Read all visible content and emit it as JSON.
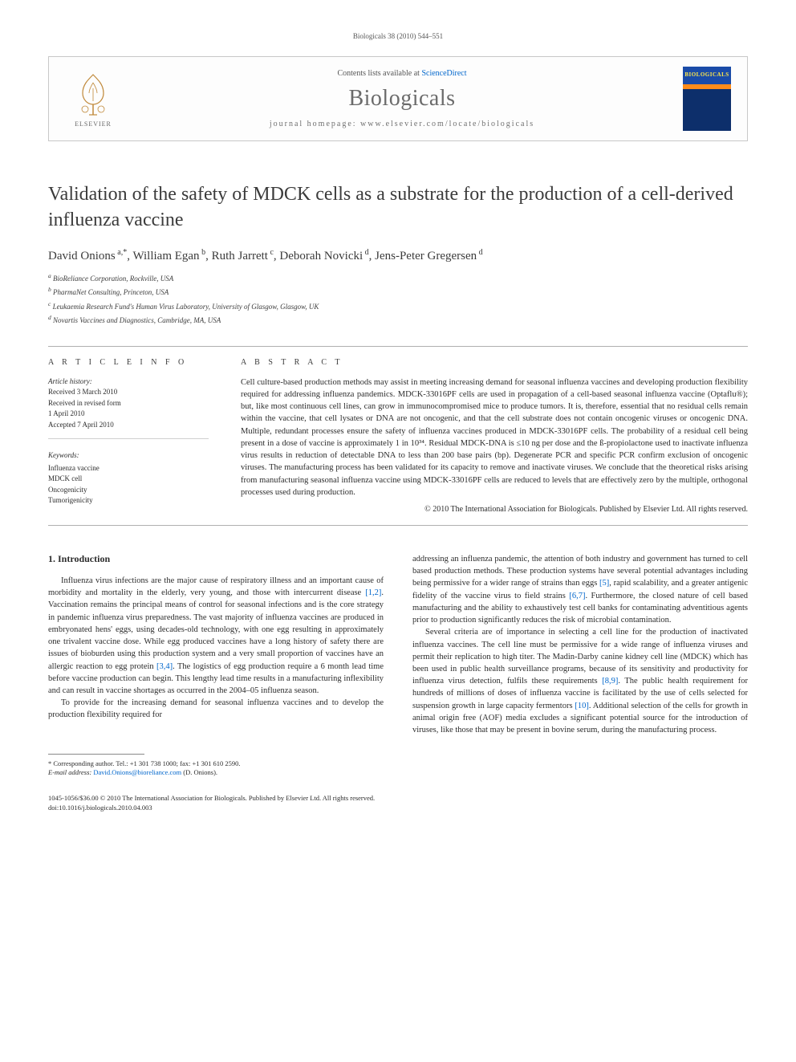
{
  "running_head": "Biologicals 38 (2010) 544–551",
  "masthead": {
    "contents_prefix": "Contents lists available at ",
    "contents_link": "ScienceDirect",
    "journal": "Biologicals",
    "homepage_label": "journal homepage: ",
    "homepage_url": "www.elsevier.com/locate/biologicals",
    "publisher_logo_text": "ELSEVIER",
    "cover_title": "BIOLOGICALS"
  },
  "title": "Validation of the safety of MDCK cells as a substrate for the production of a cell-derived influenza vaccine",
  "authors": [
    {
      "name": "David Onions",
      "marks": "a,*"
    },
    {
      "name": "William Egan",
      "marks": "b"
    },
    {
      "name": "Ruth Jarrett",
      "marks": "c"
    },
    {
      "name": "Deborah Novicki",
      "marks": "d"
    },
    {
      "name": "Jens-Peter Gregersen",
      "marks": "d"
    }
  ],
  "affiliations": [
    {
      "mark": "a",
      "text": "BioReliance Corporation, Rockville, USA"
    },
    {
      "mark": "b",
      "text": "PharmaNet Consulting, Princeton, USA"
    },
    {
      "mark": "c",
      "text": "Leukaemia Research Fund's Human Virus Laboratory, University of Glasgow, Glasgow, UK"
    },
    {
      "mark": "d",
      "text": "Novartis Vaccines and Diagnostics, Cambridge, MA, USA"
    }
  ],
  "article_info": {
    "label": "A R T I C L E   I N F O",
    "history_head": "Article history:",
    "history": [
      "Received 3 March 2010",
      "Received in revised form",
      "1 April 2010",
      "Accepted 7 April 2010"
    ],
    "keywords_head": "Keywords:",
    "keywords": [
      "Influenza vaccine",
      "MDCK cell",
      "Oncogenicity",
      "Tumorigenicity"
    ]
  },
  "abstract": {
    "label": "A B S T R A C T",
    "text": "Cell culture-based production methods may assist in meeting increasing demand for seasonal influenza vaccines and developing production flexibility required for addressing influenza pandemics. MDCK-33016PF cells are used in propagation of a cell-based seasonal influenza vaccine (Optaflu®); but, like most continuous cell lines, can grow in immunocompromised mice to produce tumors. It is, therefore, essential that no residual cells remain within the vaccine, that cell lysates or DNA are not oncogenic, and that the cell substrate does not contain oncogenic viruses or oncogenic DNA. Multiple, redundant processes ensure the safety of influenza vaccines produced in MDCK-33016PF cells. The probability of a residual cell being present in a dose of vaccine is approximately 1 in 10³⁴. Residual MDCK-DNA is ≤10 ng per dose and the ß-propiolactone used to inactivate influenza virus results in reduction of detectable DNA to less than 200 base pairs (bp). Degenerate PCR and specific PCR confirm exclusion of oncogenic viruses. The manufacturing process has been validated for its capacity to remove and inactivate viruses. We conclude that the theoretical risks arising from manufacturing seasonal influenza vaccine using MDCK-33016PF cells are reduced to levels that are effectively zero by the multiple, orthogonal processes used during production.",
    "copyright": "© 2010 The International Association for Biologicals. Published by Elsevier Ltd. All rights reserved."
  },
  "body": {
    "section_number": "1.",
    "section_title": "Introduction",
    "col1": [
      "Influenza virus infections are the major cause of respiratory illness and an important cause of morbidity and mortality in the elderly, very young, and those with intercurrent disease [1,2]. Vaccination remains the principal means of control for seasonal infections and is the core strategy in pandemic influenza virus preparedness. The vast majority of influenza vaccines are produced in embryonated hens' eggs, using decades-old technology, with one egg resulting in approximately one trivalent vaccine dose. While egg produced vaccines have a long history of safety there are issues of bioburden using this production system and a very small proportion of vaccines have an allergic reaction to egg protein [3,4]. The logistics of egg production require a 6 month lead time before vaccine production can begin. This lengthy lead time results in a manufacturing inflexibility and can result in vaccine shortages as occurred in the 2004–05 influenza season.",
      "To provide for the increasing demand for seasonal influenza vaccines and to develop the production flexibility required for"
    ],
    "col2": [
      "addressing an influenza pandemic, the attention of both industry and government has turned to cell based production methods. These production systems have several potential advantages including being permissive for a wider range of strains than eggs [5], rapid scalability, and a greater antigenic fidelity of the vaccine virus to field strains [6,7]. Furthermore, the closed nature of cell based manufacturing and the ability to exhaustively test cell banks for contaminating adventitious agents prior to production significantly reduces the risk of microbial contamination.",
      "Several criteria are of importance in selecting a cell line for the production of inactivated influenza vaccines. The cell line must be permissive for a wide range of influenza viruses and permit their replication to high titer. The Madin-Darby canine kidney cell line (MDCK) which has been used in public health surveillance programs, because of its sensitivity and productivity for influenza virus detection, fulfils these requirements [8,9]. The public health requirement for hundreds of millions of doses of influenza vaccine is facilitated by the use of cells selected for suspension growth in large capacity fermentors [10]. Additional selection of the cells for growth in animal origin free (AOF) media excludes a significant potential source for the introduction of viruses, like those that may be present in bovine serum, during the manufacturing process."
    ]
  },
  "footnote": {
    "corr_label": "* Corresponding author. Tel.: +1 301 738 1000; fax: +1 301 610 2590.",
    "email_label": "E-mail address:",
    "email": "David.Onions@bioreliance.com",
    "email_suffix": "(D. Onions)."
  },
  "footer": {
    "line1": "1045-1056/$36.00 © 2010 The International Association for Biologicals. Published by Elsevier Ltd. All rights reserved.",
    "line2": "doi:10.1016/j.biologicals.2010.04.003"
  },
  "refs": {
    "r12": "[1,2]",
    "r34": "[3,4]",
    "r5": "[5]",
    "r67": "[6,7]",
    "r89": "[8,9]",
    "r10": "[10]"
  },
  "colors": {
    "link": "#0066cc",
    "text": "#2c2c2c",
    "softgray": "#6b6b6b",
    "rule": "#b0b0b0"
  }
}
